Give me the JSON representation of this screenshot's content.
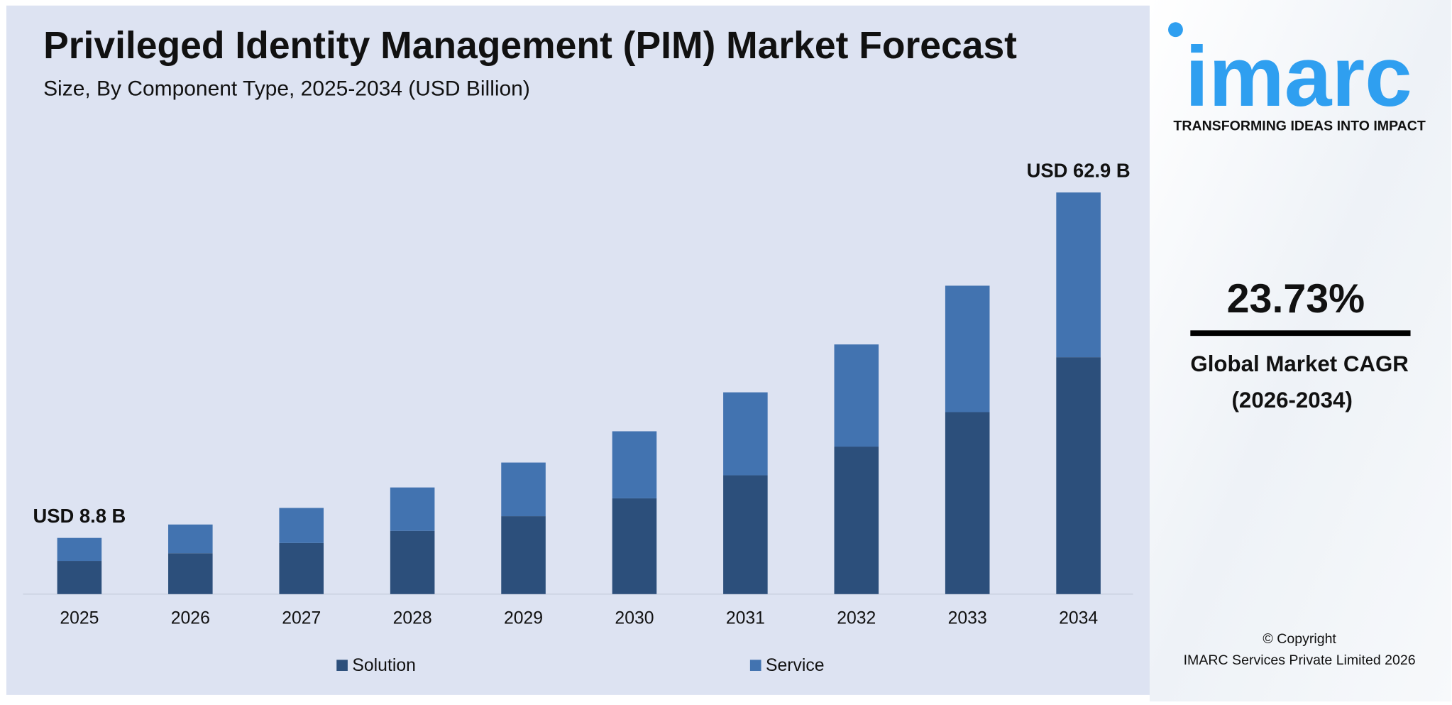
{
  "chart_data": {
    "type": "stacked-bar",
    "title": "Privileged Identity Management (PIM) Market Forecast",
    "subtitle": "Size, By Component Type, 2025-2034 (USD Billion)",
    "categories": [
      "2025",
      "2026",
      "2027",
      "2028",
      "2029",
      "2030",
      "2031",
      "2032",
      "2033",
      "2034"
    ],
    "series": [
      {
        "name": "Solution",
        "color": "#2c4f7b",
        "values": [
          5.2,
          6.4,
          8.0,
          9.9,
          12.2,
          15.0,
          18.6,
          23.1,
          28.5,
          37.1
        ]
      },
      {
        "name": "Service",
        "color": "#4273b0",
        "values": [
          3.6,
          4.5,
          5.5,
          6.8,
          8.4,
          10.5,
          13.0,
          16.0,
          19.8,
          25.8
        ]
      }
    ],
    "annotations": [
      {
        "category": "2025",
        "value": 8.8,
        "label": "USD 8.8 B"
      },
      {
        "category": "2034",
        "value": 62.9,
        "label": "USD 62.9 B"
      }
    ],
    "ylim": [
      0,
      70
    ],
    "legend": "bottom"
  },
  "sidebar": {
    "logo": "imarc",
    "tagline": "TRANSFORMING IDEAS INTO IMPACT",
    "cagr": "23.73%",
    "cagr_label": "Global Market CAGR",
    "cagr_period": "(2026-2034)",
    "copyright": "© Copyright",
    "company": "IMARC Services Private Limited 2026"
  }
}
